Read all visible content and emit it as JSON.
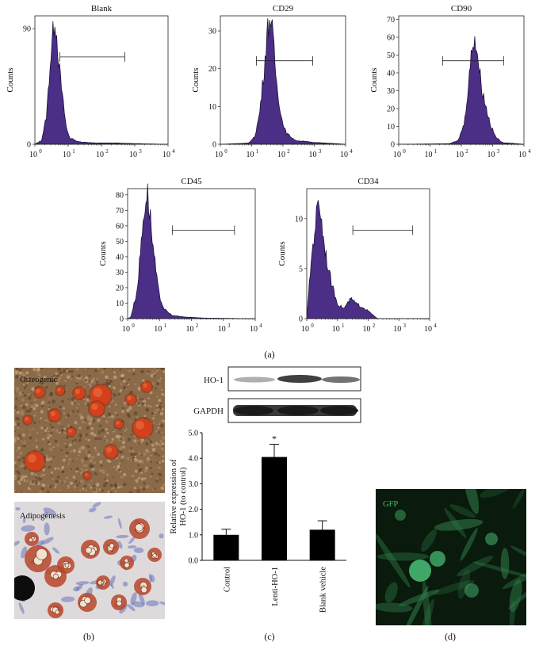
{
  "panel_labels": {
    "a": "(a)",
    "b": "(b)",
    "c": "(c)",
    "d": "(d)"
  },
  "flow_cytometry": {
    "y_label": "Counts",
    "x_tick_labels": [
      "10",
      "10",
      "10",
      "10",
      "10"
    ],
    "x_tick_exps": [
      "0",
      "1",
      "2",
      "3",
      "4"
    ],
    "panels": [
      {
        "id": "blank",
        "title": "Blank",
        "y_ticks": [
          "0",
          "90"
        ],
        "y_max": 100,
        "peak_log": 0.6,
        "peak_count": 100
      },
      {
        "id": "cd29",
        "title": "CD29",
        "y_ticks": [
          "0",
          "10",
          "20",
          "30"
        ],
        "y_max": 34,
        "peak_log": 1.6,
        "peak_count": 34
      },
      {
        "id": "cd90",
        "title": "CD90",
        "y_ticks": [
          "0",
          "10",
          "20",
          "30",
          "40",
          "50",
          "60",
          "70"
        ],
        "y_max": 72,
        "peak_log": 2.4,
        "peak_count": 62
      },
      {
        "id": "cd45",
        "title": "CD45",
        "y_ticks": [
          "0",
          "10",
          "20",
          "30",
          "40",
          "50",
          "60",
          "70",
          "80"
        ],
        "y_max": 84,
        "peak_log": 0.65,
        "peak_count": 82
      },
      {
        "id": "cd34",
        "title": "CD34",
        "y_ticks": [
          "0",
          "5",
          "10"
        ],
        "y_max": 13,
        "peak_log": 0.4,
        "peak_count": 12
      }
    ]
  },
  "micrographs": {
    "osteogenic_label": "Osteogenic",
    "adipogenesis_label": "Adipogenesis",
    "gfp_label": "GFP",
    "colors": {
      "osteo_bg": "#8a6a48",
      "osteo_nodule": "#d2401c",
      "adipo_bg": "#dedadb",
      "adipo_droplet": "#c0491f",
      "gfp_bg": "#0a1a0c",
      "gfp_cell": "#3fa866"
    }
  },
  "western_blot": {
    "bands": [
      {
        "label": "HO-1"
      },
      {
        "label": "GAPDH"
      }
    ]
  },
  "chart_data": {
    "type": "bar",
    "categories": [
      "Control",
      "Lenti-HO-1",
      "Blank vehicle"
    ],
    "values": [
      1.0,
      4.05,
      1.2
    ],
    "errors": [
      0.22,
      0.5,
      0.35
    ],
    "significance": [
      "",
      "*",
      ""
    ],
    "ylabel_line1": "Relative expression of",
    "ylabel_line2": "HO-1 (to control)",
    "y_ticks": [
      "0.0",
      "1.0",
      "2.0",
      "3.0",
      "4.0",
      "5.0"
    ],
    "ylim": [
      0,
      5
    ],
    "bar_color": "#000000"
  }
}
